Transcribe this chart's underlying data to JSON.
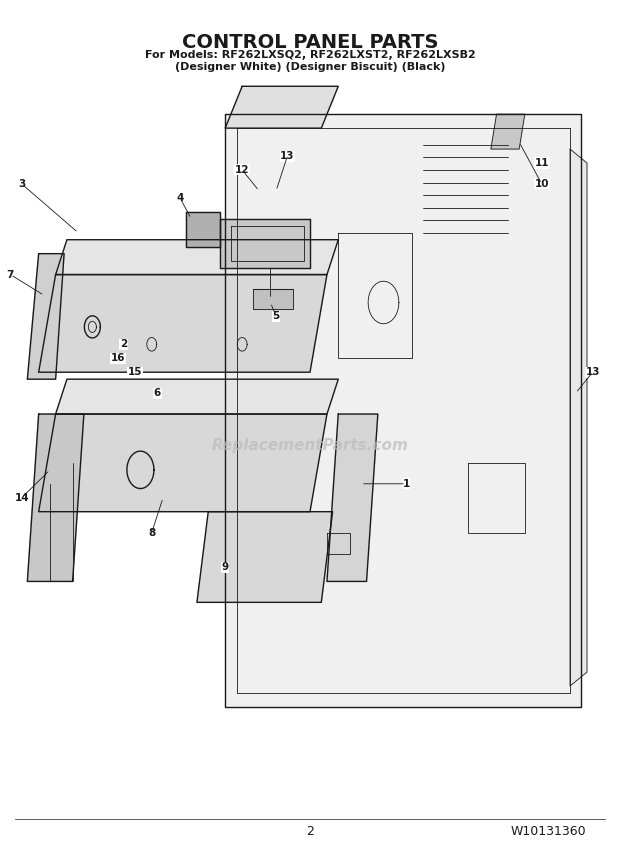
{
  "title": "CONTROL PANEL PARTS",
  "subtitle_line1": "For Models: RF262LXSQ2, RF262LXST2, RF262LXSB2",
  "subtitle_line2": "(Designer White) (Designer Biscuit) (Black)",
  "page_number": "2",
  "doc_number": "W10131360",
  "bg_color": "#ffffff",
  "line_color": "#1a1a1a",
  "watermark": "ReplacementParts.com"
}
